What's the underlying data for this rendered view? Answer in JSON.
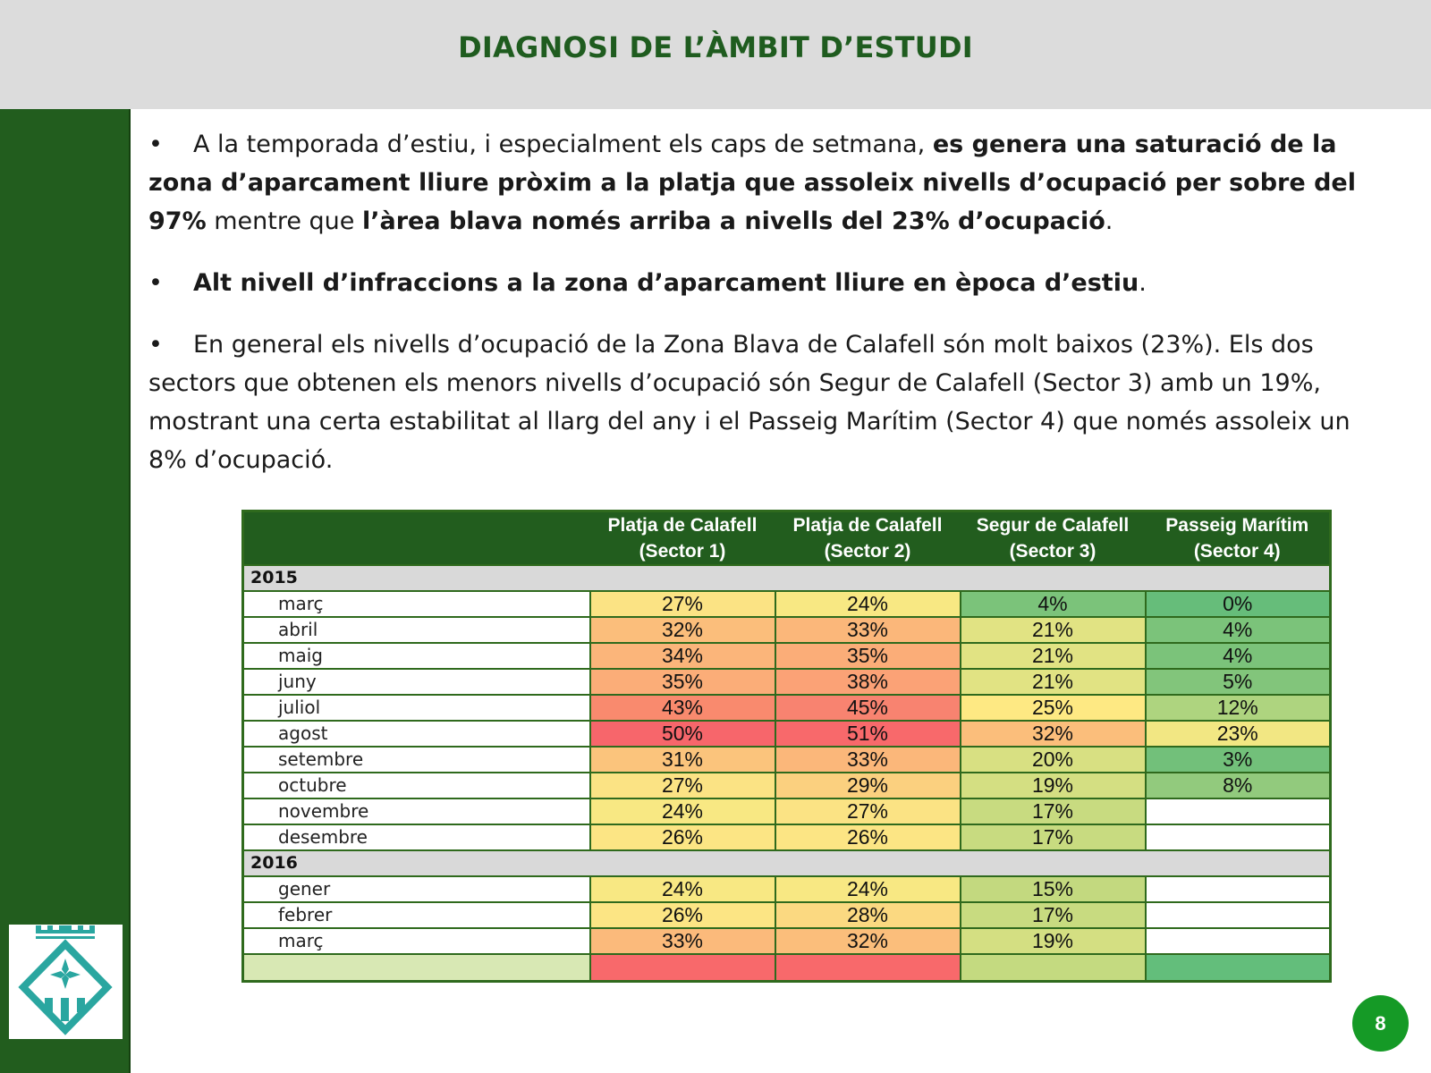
{
  "title": "DIAGNOSI DE L’ÀMBIT D’ESTUDI",
  "bullets": [
    {
      "t1": "A la temporada d’estiu, i especialment els caps de setmana, ",
      "b1": "es genera una saturació de la zona d’aparcament lliure pròxim a la platja que assoleix nivells d’ocupació per sobre del 97%",
      "t2": " mentre que ",
      "b2": "l’àrea blava només arriba a nivells del 23% d’ocupació",
      "t3": "."
    },
    {
      "b1": "Alt nivell d’infraccions a la zona d’aparcament lliure en època d’estiu",
      "t2": "."
    },
    {
      "t1": "En general els nivells d’ocupació de la Zona Blava de Calafell són molt baixos (23%). Els dos sectors que obtenen els menors nivells d’ocupació són Segur de Calafell (Sector 3) amb un 19%, mostrant una certa estabilitat al llarg del any i el Passeig Marítim (Sector 4) que només assoleix un 8% d’ocupació."
    }
  ],
  "table": {
    "headers": [
      {
        "l1": "Platja de Calafell",
        "l2": "(Sector 1)"
      },
      {
        "l1": "Platja de Calafell",
        "l2": "(Sector 2)"
      },
      {
        "l1": "Segur de Calafell",
        "l2": "(Sector 3)"
      },
      {
        "l1": "Passeig Marítim",
        "l2": "(Sector 4)"
      }
    ],
    "years": [
      "2015",
      "2016"
    ],
    "rows": [
      {
        "month": "març",
        "vals": [
          "27%",
          "24%",
          "4%",
          "0%"
        ],
        "colors": [
          "#fbe384",
          "#f8e883",
          "#7bc37a",
          "#66bd7a"
        ]
      },
      {
        "month": "abril",
        "vals": [
          "32%",
          "33%",
          "21%",
          "4%"
        ],
        "colors": [
          "#fbbe7b",
          "#fbb77a",
          "#e1e383",
          "#7bc37a"
        ]
      },
      {
        "month": "maig",
        "vals": [
          "34%",
          "35%",
          "21%",
          "4%"
        ],
        "colors": [
          "#fbb57a",
          "#fbad78",
          "#e1e383",
          "#7bc37a"
        ]
      },
      {
        "month": "juny",
        "vals": [
          "35%",
          "38%",
          "21%",
          "5%"
        ],
        "colors": [
          "#fbad78",
          "#fba276",
          "#e1e383",
          "#82c57b"
        ]
      },
      {
        "month": "juliol",
        "vals": [
          "43%",
          "45%",
          "25%",
          "12%"
        ],
        "colors": [
          "#f98a6e",
          "#f88370",
          "#fee983",
          "#aed47f"
        ]
      },
      {
        "month": "agost",
        "vals": [
          "50%",
          "51%",
          "32%",
          "23%"
        ],
        "colors": [
          "#f7666b",
          "#f8696b",
          "#fbbe7b",
          "#f2e783"
        ]
      },
      {
        "month": "setembre",
        "vals": [
          "31%",
          "33%",
          "20%",
          "3%"
        ],
        "colors": [
          "#fbc47c",
          "#fbb77a",
          "#d8e082",
          "#72c07a"
        ]
      },
      {
        "month": "octubre",
        "vals": [
          "27%",
          "29%",
          "19%",
          "8%"
        ],
        "colors": [
          "#fbe384",
          "#fbd07f",
          "#d4df82",
          "#92ca7d"
        ]
      },
      {
        "month": "novembre",
        "vals": [
          "24%",
          "27%",
          "17%",
          ""
        ],
        "colors": [
          "#f8e883",
          "#fbe384",
          "#c8db80",
          "#ffffff"
        ]
      },
      {
        "month": "desembre",
        "vals": [
          "26%",
          "26%",
          "17%",
          ""
        ],
        "colors": [
          "#fce584",
          "#fce584",
          "#c8db80",
          "#ffffff"
        ]
      }
    ],
    "rows2016": [
      {
        "month": "gener",
        "vals": [
          "24%",
          "24%",
          "15%",
          ""
        ],
        "colors": [
          "#f8e883",
          "#f8e883",
          "#c3d97f",
          "#ffffff"
        ]
      },
      {
        "month": "febrer",
        "vals": [
          "26%",
          "28%",
          "17%",
          ""
        ],
        "colors": [
          "#fce584",
          "#fbd981",
          "#c8db80",
          "#ffffff"
        ]
      },
      {
        "month": "març",
        "vals": [
          "33%",
          "32%",
          "19%",
          ""
        ],
        "colors": [
          "#fbba7b",
          "#fbbe7b",
          "#d4df82",
          "#ffffff"
        ]
      }
    ],
    "totals_colors": [
      "#d8e8b4",
      "#f8696b",
      "#f8696b",
      "#c4da80",
      "#63be7b"
    ]
  },
  "page_number": "8",
  "colors": {
    "title": "#1f5c1f",
    "sidebar": "#225d1e",
    "table_header": "#225d1e",
    "page_badge": "#159a26",
    "logo": "#2aa6a0"
  },
  "logo_icon": "calafell-crest-icon"
}
